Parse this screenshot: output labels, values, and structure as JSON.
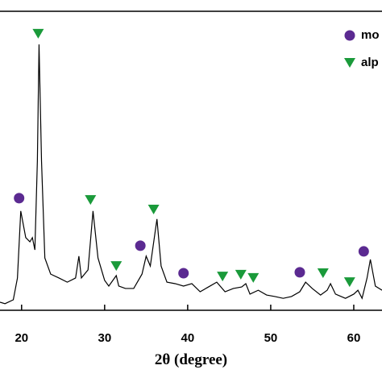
{
  "chart_data": {
    "type": "line",
    "x_label": "2θ (degree)",
    "color": "#000000",
    "xlim": [
      17.4,
      63.4
    ],
    "xticks": [
      20,
      30,
      40,
      50,
      60
    ],
    "ylim": [
      0,
      100
    ],
    "x": [
      17.4,
      18,
      19,
      19.5,
      19.9,
      20.5,
      21,
      21.3,
      21.6,
      21.9,
      22.1,
      22.4,
      22.8,
      23.5,
      24.5,
      25.5,
      26.5,
      26.9,
      27.2,
      28,
      28.6,
      29.2,
      30,
      30.5,
      31.4,
      31.7,
      32.5,
      33.5,
      34.5,
      35,
      35.5,
      36.3,
      36.8,
      37.5,
      38.5,
      39.5,
      40.5,
      41.5,
      42.5,
      43.5,
      44.5,
      45.5,
      46.5,
      47,
      47.5,
      48.5,
      49.5,
      50.5,
      51.5,
      52.5,
      53.5,
      54.2,
      55,
      56,
      56.8,
      57.2,
      57.8,
      59,
      60,
      60.5,
      61,
      61.6,
      62,
      62.6,
      63.4
    ],
    "values": [
      2.7,
      2.2,
      3.5,
      10.8,
      33.2,
      24.3,
      22.9,
      24.3,
      20.2,
      49.9,
      88.9,
      49.9,
      17.5,
      12.1,
      10.8,
      9.4,
      10.8,
      18.1,
      10.8,
      13.5,
      33.2,
      17.5,
      10.0,
      8.1,
      11.6,
      8.1,
      7.3,
      7.3,
      12.1,
      18.1,
      14.8,
      30.5,
      14.8,
      9.4,
      8.9,
      8.1,
      8.9,
      6.2,
      7.8,
      9.4,
      6.2,
      7.3,
      7.8,
      8.9,
      5.4,
      6.7,
      5.1,
      4.6,
      4.0,
      4.6,
      6.2,
      9.4,
      7.3,
      5.1,
      6.7,
      8.9,
      5.4,
      4.0,
      5.4,
      6.7,
      4.0,
      10.8,
      17.0,
      8.1,
      6.7
    ],
    "markers": [
      {
        "name": "mo",
        "color": "#5b2a91",
        "shape": "circle",
        "x": [
          19.7,
          34.3,
          39.5,
          53.5,
          61.2
        ],
        "y": [
          37.5,
          21.6,
          12.4,
          12.7,
          19.7
        ]
      },
      {
        "name": "alp",
        "color": "#1a9a3a",
        "shape": "triangle",
        "x": [
          22.0,
          28.3,
          31.4,
          35.9,
          44.2,
          46.4,
          47.9,
          56.3,
          59.5
        ],
        "y": [
          92.5,
          36.9,
          14.8,
          33.7,
          11.3,
          11.9,
          10.8,
          12.4,
          9.4
        ]
      }
    ]
  }
}
